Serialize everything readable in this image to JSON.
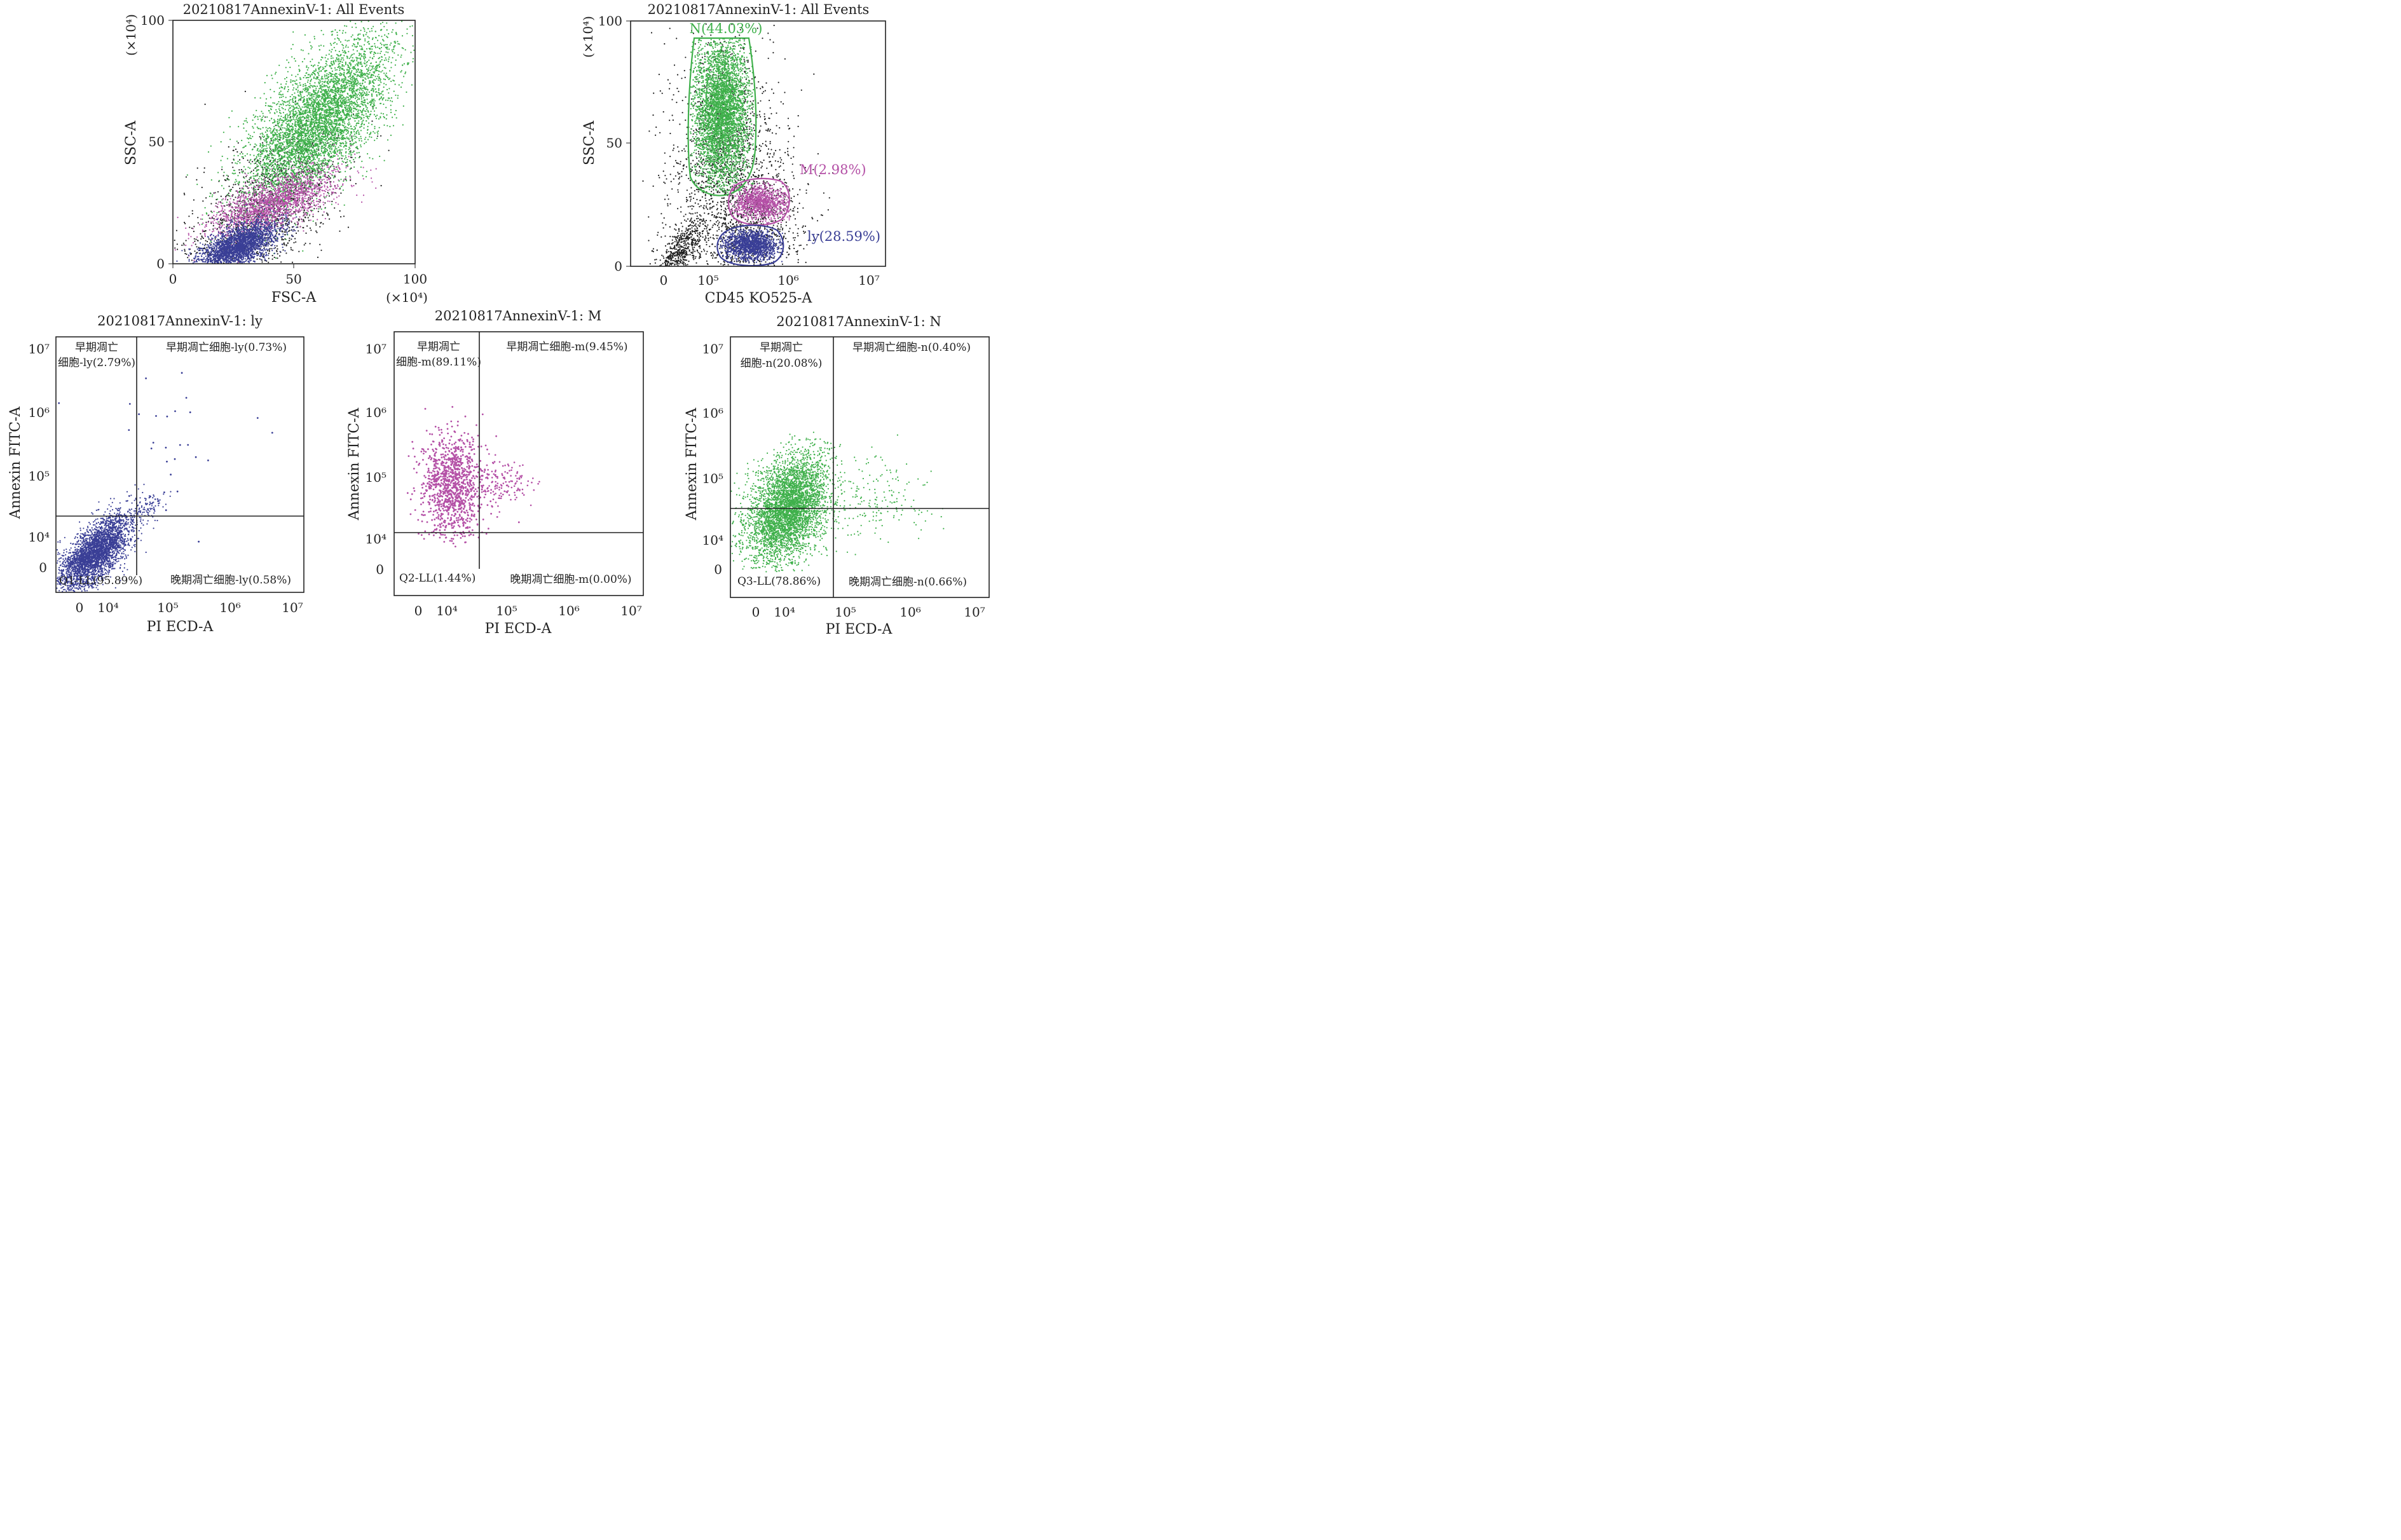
{
  "chart_data": [
    {
      "id": "p1",
      "type": "scatter",
      "title": "20210817AnnexinV-1: All Events",
      "xlabel": "FSC-A",
      "ylabel": "SSC-A",
      "x_unit": "(×10⁴)",
      "y_unit": "(×10⁴)",
      "xlim": [
        0,
        100
      ],
      "ylim": [
        0,
        100
      ],
      "x_ticks": [
        "0",
        "50",
        "100"
      ],
      "y_ticks": [
        "0",
        "50",
        "100"
      ],
      "series": [
        {
          "color": "#222222",
          "distribution": {
            "center": [
              38,
              22
            ],
            "spread": [
              16,
              14
            ],
            "tilt": 0.5
          }
        },
        {
          "color": "#3fb04b",
          "distribution": {
            "center": [
              60,
              58
            ],
            "spread": [
              15,
              16
            ],
            "tilt": 0.55
          }
        },
        {
          "color": "#b450a6",
          "distribution": {
            "center": [
              42,
              25
            ],
            "spread": [
              13,
              5
            ],
            "tilt": 0.3
          }
        },
        {
          "color": "#3a3f96",
          "distribution": {
            "center": [
              27,
              7
            ],
            "spread": [
              8,
              4
            ],
            "tilt": 0.35
          }
        }
      ]
    },
    {
      "id": "p2",
      "type": "scatter",
      "title": "20210817AnnexinV-1: All Events",
      "xlabel": "CD45 KO525-A",
      "ylabel": "SSC-A",
      "y_unit": "(×10⁴)",
      "ylim": [
        0,
        100
      ],
      "y_ticks": [
        "0",
        "50",
        "100"
      ],
      "x_ticks": [
        "0",
        "10⁵",
        "10⁶",
        "10⁷"
      ],
      "gates": [
        {
          "name": "N",
          "label": "N(44.03%)",
          "color": "#3fb04b"
        },
        {
          "name": "M",
          "label": "M(2.98%)",
          "color": "#b450a6"
        },
        {
          "name": "ly",
          "label": "ly(28.59%)",
          "color": "#3a3f96"
        }
      ]
    },
    {
      "id": "p3",
      "type": "scatter",
      "title": "20210817AnnexinV-1: ly",
      "xlabel": "PI ECD-A",
      "ylabel": "Annexin FITC-A",
      "x_ticks": [
        "0",
        "10⁴",
        "10⁵",
        "10⁶",
        "10⁷"
      ],
      "y_ticks": [
        "0",
        "10⁴",
        "10⁵",
        "10⁶",
        "10⁷"
      ],
      "color": "#3a3f96",
      "quadrants": {
        "ul": [
          "早期凋亡",
          "细胞-ly(2.79%)"
        ],
        "ur": "早期凋亡细胞-ly(0.73%)",
        "ll": "Q1-LL(95.89%)",
        "lr": "晚期凋亡细胞-ly(0.58%)"
      }
    },
    {
      "id": "p4",
      "type": "scatter",
      "title": "20210817AnnexinV-1: M",
      "xlabel": "PI ECD-A",
      "ylabel": "Annexin FITC-A",
      "x_ticks": [
        "0",
        "10⁴",
        "10⁵",
        "10⁶",
        "10⁷"
      ],
      "y_ticks": [
        "0",
        "10⁴",
        "10⁵",
        "10⁶",
        "10⁷"
      ],
      "color": "#b450a6",
      "quadrants": {
        "ul": [
          "早期凋亡",
          "细胞-m(89.11%)"
        ],
        "ur": "早期凋亡细胞-m(9.45%)",
        "ll": "Q2-LL(1.44%)",
        "lr": "晚期凋亡细胞-m(0.00%)"
      }
    },
    {
      "id": "p5",
      "type": "scatter",
      "title": "20210817AnnexinV-1: N",
      "xlabel": "PI ECD-A",
      "ylabel": "Annexin FITC-A",
      "x_ticks": [
        "0",
        "10⁴",
        "10⁵",
        "10⁶",
        "10⁷"
      ],
      "y_ticks": [
        "0",
        "10⁴",
        "10⁵",
        "10⁶",
        "10⁷"
      ],
      "color": "#3fb04b",
      "quadrants": {
        "ul": [
          "早期凋亡",
          "细胞-n(20.08%)"
        ],
        "ur": "早期凋亡细胞-n(0.40%)",
        "ll": "Q3-LL(78.86%)",
        "lr": "晚期凋亡细胞-n(0.66%)"
      }
    }
  ]
}
